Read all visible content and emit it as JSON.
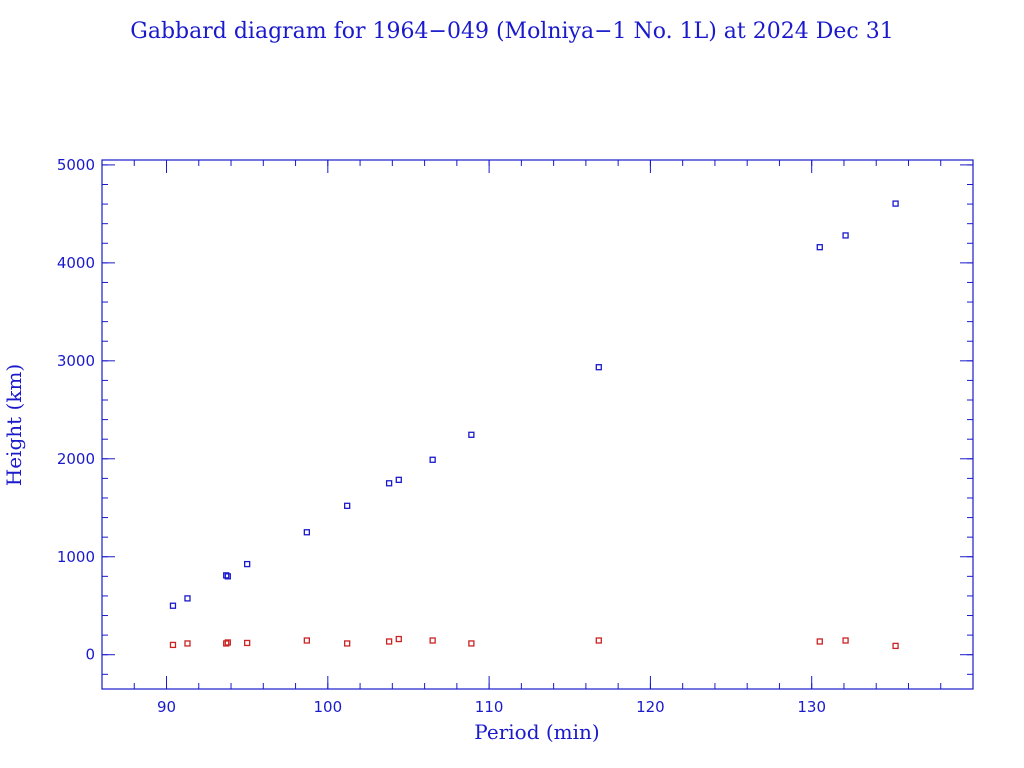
{
  "colors": {
    "axis": "#1a1acc",
    "apogee": "#1a1acc",
    "perigee": "#cc2222",
    "background": "#ffffff"
  },
  "chart_data": {
    "type": "scatter",
    "title": "Gabbard diagram for 1964−049 (Molniya−1 No. 1L) at 2024 Dec 31",
    "xlabel": "Period (min)",
    "ylabel": "Height (km)",
    "xlim": [
      86,
      140
    ],
    "ylim": [
      -350,
      5050
    ],
    "x_ticks": [
      90,
      100,
      110,
      120,
      130
    ],
    "x_tick_labels": [
      "90",
      "100",
      "110",
      "120",
      "130"
    ],
    "y_ticks": [
      0,
      1000,
      2000,
      3000,
      4000,
      5000
    ],
    "y_tick_labels": [
      "0",
      "1000",
      "2000",
      "3000",
      "4000",
      "5000"
    ],
    "x_minor_step": 2,
    "y_minor_step": 200,
    "grid": false,
    "series": [
      {
        "id": "apogee",
        "points": [
          [
            90.4,
            500
          ],
          [
            91.3,
            575
          ],
          [
            93.7,
            810
          ],
          [
            93.8,
            800
          ],
          [
            95.0,
            925
          ],
          [
            98.7,
            1250
          ],
          [
            101.2,
            1520
          ],
          [
            103.8,
            1750
          ],
          [
            104.4,
            1785
          ],
          [
            106.5,
            1990
          ],
          [
            108.9,
            2245
          ],
          [
            116.8,
            2935
          ],
          [
            130.5,
            4160
          ],
          [
            132.1,
            4280
          ],
          [
            135.2,
            4605
          ]
        ]
      },
      {
        "id": "perigee",
        "points": [
          [
            90.4,
            100
          ],
          [
            91.3,
            115
          ],
          [
            93.7,
            115
          ],
          [
            93.8,
            125
          ],
          [
            95.0,
            120
          ],
          [
            98.7,
            145
          ],
          [
            101.2,
            115
          ],
          [
            103.8,
            135
          ],
          [
            104.4,
            160
          ],
          [
            106.5,
            145
          ],
          [
            108.9,
            115
          ],
          [
            116.8,
            145
          ],
          [
            130.5,
            135
          ],
          [
            132.1,
            145
          ],
          [
            135.2,
            90
          ]
        ]
      }
    ]
  }
}
